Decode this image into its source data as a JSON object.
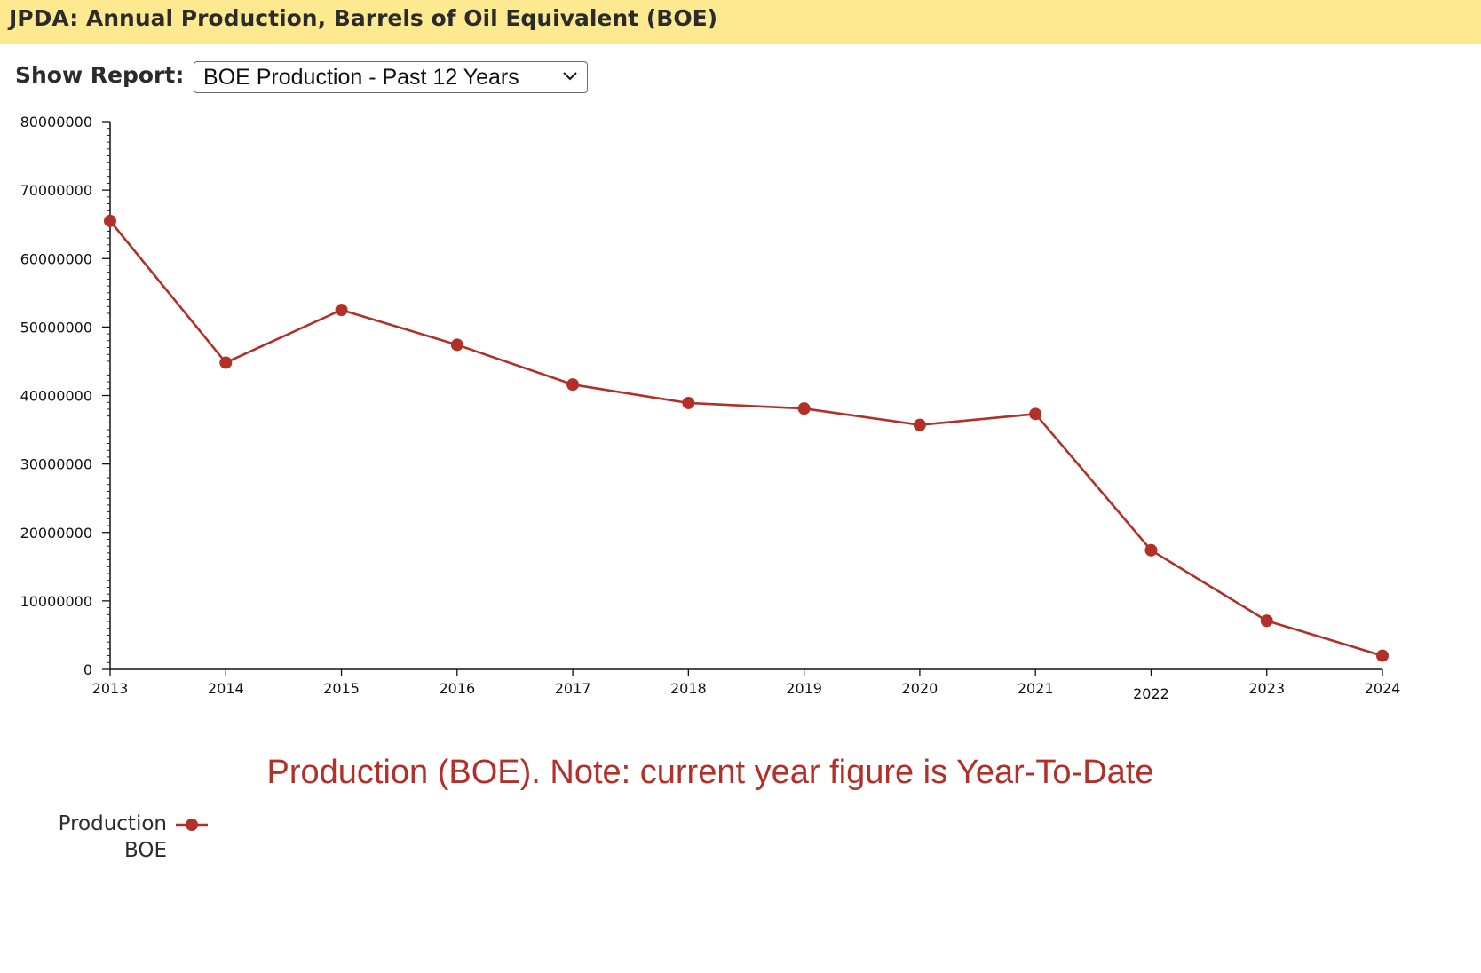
{
  "header": {
    "title": "JPDA: Annual Production, Barrels of Oil Equivalent (BOE)"
  },
  "report": {
    "label": "Show Report:",
    "selected": "BOE Production - Past 12 Years"
  },
  "colors": {
    "header_bg": "#fde98f",
    "series": "#b3302a",
    "axis": "#111111"
  },
  "chart_data": {
    "type": "line",
    "title": "Production (BOE). Note: current year figure is Year-To-Date",
    "xlabel": "",
    "ylabel": "",
    "ylim": [
      0,
      80000000
    ],
    "y_ticks": [
      "0",
      "10000000",
      "20000000",
      "30000000",
      "40000000",
      "50000000",
      "60000000",
      "70000000",
      "80000000"
    ],
    "categories": [
      "2013",
      "2014",
      "2015",
      "2016",
      "2017",
      "2018",
      "2019",
      "2020",
      "2021",
      "2022",
      "2023",
      "2024"
    ],
    "series": [
      {
        "name": "Production BOE",
        "name_lines": [
          "Production",
          "BOE"
        ],
        "values": [
          65500000,
          44800000,
          52500000,
          47400000,
          41600000,
          38900000,
          38100000,
          35700000,
          37300000,
          17400000,
          7100000,
          2000000
        ]
      }
    ],
    "legend_position": "bottom-left"
  }
}
